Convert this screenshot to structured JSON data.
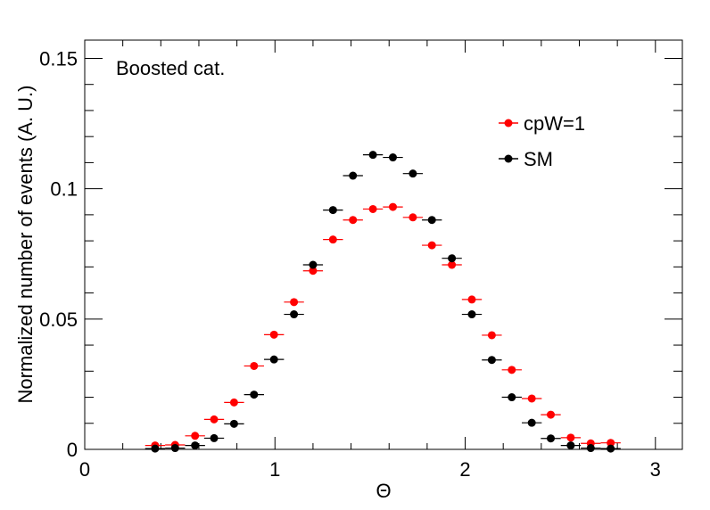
{
  "chart_data": {
    "type": "scatter",
    "annotation": "Boosted cat.",
    "xlabel": "Θ",
    "ylabel": "Normalized number of events (A. U.)",
    "xlim": [
      0,
      3.1416
    ],
    "ylim": [
      0,
      0.157
    ],
    "xticks": [
      0,
      1,
      2,
      3
    ],
    "xtick_labels": [
      "0",
      "1",
      "2",
      "3"
    ],
    "yticks": [
      0,
      0.05,
      0.1,
      0.15
    ],
    "ytick_labels": [
      "0",
      "0.05",
      "0.1",
      "0.15"
    ],
    "grid": false,
    "legend_position": "top-right",
    "bin_half_width": 0.0524,
    "series": [
      {
        "name": "cpW=1",
        "color": "#ff0000",
        "x": [
          0.37,
          0.475,
          0.58,
          0.68,
          0.785,
          0.89,
          0.995,
          1.1,
          1.2,
          1.305,
          1.41,
          1.515,
          1.62,
          1.725,
          1.825,
          1.93,
          2.035,
          2.14,
          2.245,
          2.35,
          2.45,
          2.555,
          2.66,
          2.765
        ],
        "values": [
          0.0015,
          0.0017,
          0.0052,
          0.0115,
          0.018,
          0.032,
          0.044,
          0.0565,
          0.0685,
          0.0805,
          0.088,
          0.0922,
          0.093,
          0.089,
          0.0783,
          0.0708,
          0.0575,
          0.0438,
          0.0305,
          0.0195,
          0.0133,
          0.0045,
          0.0023,
          0.0025
        ]
      },
      {
        "name": "SM",
        "color": "#000000",
        "x": [
          0.37,
          0.475,
          0.58,
          0.68,
          0.785,
          0.89,
          0.995,
          1.1,
          1.2,
          1.305,
          1.41,
          1.515,
          1.62,
          1.725,
          1.825,
          1.93,
          2.035,
          2.14,
          2.245,
          2.35,
          2.45,
          2.555,
          2.66,
          2.765
        ],
        "values": [
          0.0003,
          0.0005,
          0.0015,
          0.0043,
          0.0098,
          0.021,
          0.0345,
          0.0518,
          0.0708,
          0.0918,
          0.105,
          0.113,
          0.112,
          0.1058,
          0.088,
          0.0733,
          0.0518,
          0.0343,
          0.02,
          0.0102,
          0.0042,
          0.0015,
          0.0005,
          0.0003
        ]
      }
    ]
  }
}
